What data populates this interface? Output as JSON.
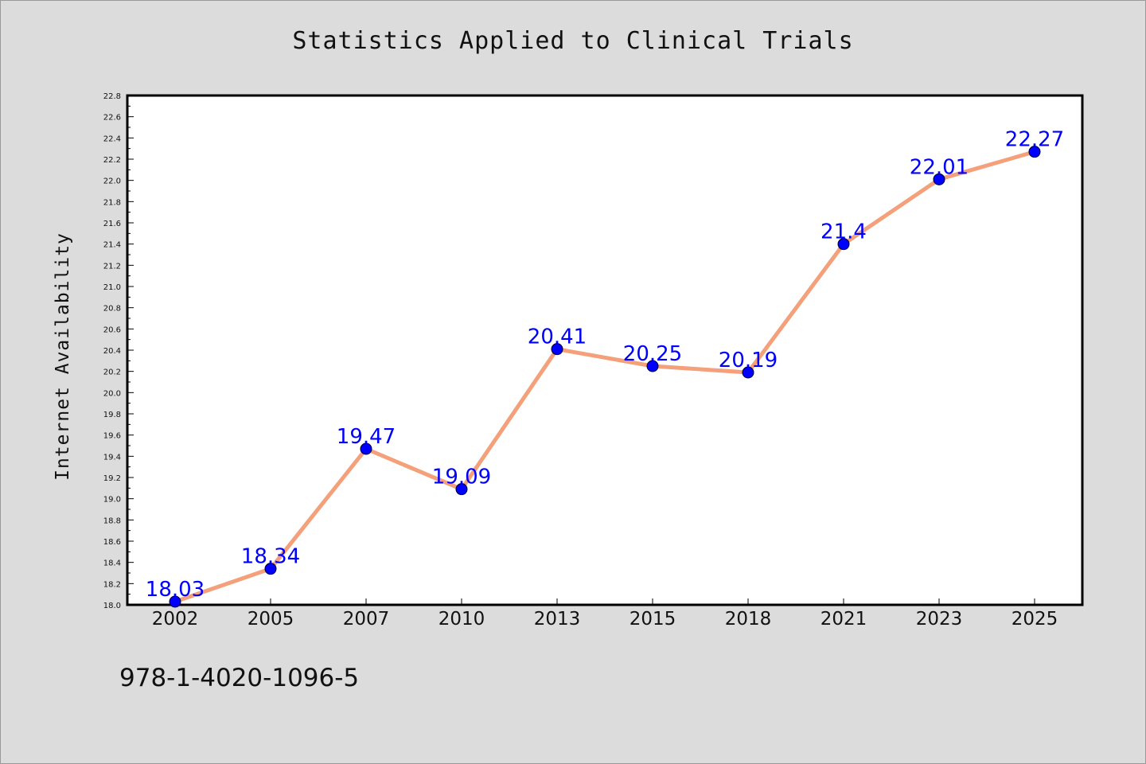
{
  "chart_data": {
    "type": "line",
    "title": "Statistics Applied to Clinical Trials",
    "ylabel": "Internet Availability",
    "xlabel": "",
    "categories": [
      "2002",
      "2005",
      "2007",
      "2010",
      "2013",
      "2015",
      "2018",
      "2021",
      "2023",
      "2025"
    ],
    "series": [
      {
        "values": [
          18.03,
          18.34,
          19.47,
          19.09,
          20.41,
          20.25,
          20.19,
          21.4,
          22.01,
          22.27
        ],
        "data_labels": [
          "18.03",
          "18.34",
          "19.47",
          "19.09",
          "20.41",
          "20.25",
          "20.19",
          "21.4",
          "22.01",
          "22.27"
        ]
      }
    ],
    "ylim": [
      18.0,
      22.8
    ],
    "yticks": [
      "18.0",
      "18.2",
      "18.4",
      "18.6",
      "18.8",
      "19.0",
      "19.2",
      "19.4",
      "19.6",
      "19.8",
      "20.0",
      "20.2",
      "20.4",
      "20.6",
      "20.8",
      "21.0",
      "21.2",
      "21.4",
      "21.6",
      "21.8",
      "22.0",
      "22.2",
      "22.4",
      "22.6",
      "22.8"
    ],
    "grid": false,
    "line_color": "#f4a07a",
    "marker_color": "#0000ff",
    "label_color": "#0000ff",
    "background": "#dcdcdc",
    "plot_background": "#ffffff"
  },
  "footer": {
    "isbn": "978-1-4020-1096-5"
  }
}
